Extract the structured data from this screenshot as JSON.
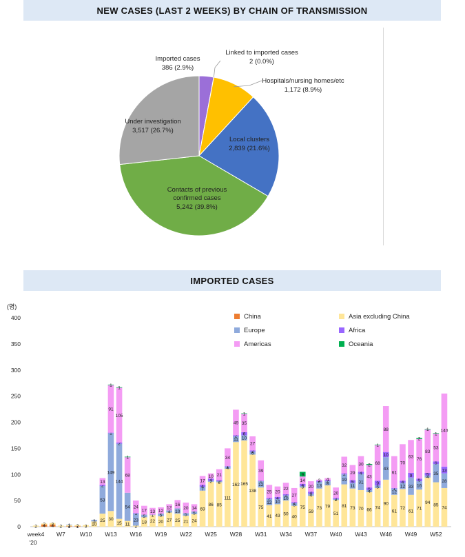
{
  "pie": {
    "title": "NEW CASES (LAST 2 WEEKS) BY CHAIN OF TRANSMISSION"
  },
  "bar": {
    "title": "IMPORTED CASES",
    "unit": "(명)"
  },
  "chart_data": [
    {
      "type": "pie",
      "title": "NEW CASES (LAST 2 WEEKS) BY CHAIN OF TRANSMISSION",
      "slices": [
        {
          "label": "Imported cases",
          "value": 386,
          "pct": "2.9%",
          "display": "386  (2.9%)",
          "color": "#9b6fd8"
        },
        {
          "label": "Linked to imported cases",
          "value": 2,
          "pct": "0.0%",
          "display": "2  (0.0%)",
          "color": "#e07a30"
        },
        {
          "label": "Hospitals/nursing homes/etc",
          "value": 1172,
          "pct": "8.9%",
          "display": "1,172  (8.9%)",
          "color": "#ffc000"
        },
        {
          "label": "Local clusters",
          "value": 2839,
          "pct": "21.6%",
          "display": "2,839  (21.6%)",
          "color": "#4472c4"
        },
        {
          "label": "Contacts of previous confirmed cases",
          "value": 5242,
          "pct": "39.8%",
          "display": "5,242  (39.8%)",
          "color": "#70ad47"
        },
        {
          "label": "Under investigation",
          "value": 3517,
          "pct": "26.7%",
          "display": "3,517  (26.7%)",
          "color": "#a5a5a5"
        }
      ]
    },
    {
      "type": "bar",
      "stacked": true,
      "title": "IMPORTED CASES",
      "ylabel": "(명)",
      "ylim": [
        0,
        400
      ],
      "yticks": [
        0,
        50,
        100,
        150,
        200,
        250,
        300,
        350,
        400
      ],
      "x_tick_labels": [
        {
          "index": 0,
          "label": "week4"
        },
        {
          "index": 3,
          "label": "W7"
        },
        {
          "index": 6,
          "label": "W10"
        },
        {
          "index": 9,
          "label": "W13"
        },
        {
          "index": 12,
          "label": "W16"
        },
        {
          "index": 15,
          "label": "W19"
        },
        {
          "index": 18,
          "label": "W22"
        },
        {
          "index": 21,
          "label": "W25"
        },
        {
          "index": 24,
          "label": "W28"
        },
        {
          "index": 27,
          "label": "W31"
        },
        {
          "index": 30,
          "label": "W34"
        },
        {
          "index": 33,
          "label": "W37"
        },
        {
          "index": 36,
          "label": "W40"
        },
        {
          "index": 39,
          "label": "W43"
        },
        {
          "index": 42,
          "label": "W46"
        },
        {
          "index": 45,
          "label": "W49"
        },
        {
          "index": 48,
          "label": "W52"
        }
      ],
      "year_label": "'20",
      "categories": [
        "W4",
        "W5",
        "W6",
        "W7",
        "W8",
        "W9",
        "W10",
        "W11",
        "W12",
        "W13",
        "W14",
        "W15",
        "W16",
        "W17",
        "W18",
        "W19",
        "W20",
        "W21",
        "W22",
        "W23",
        "W24",
        "W25",
        "W26",
        "W27",
        "W28",
        "W29",
        "W30",
        "W31",
        "W32",
        "W33",
        "W34",
        "W35",
        "W36",
        "W37",
        "W38",
        "W39",
        "W40",
        "W41",
        "W42",
        "W43",
        "W44",
        "W45",
        "W46",
        "W47",
        "W48",
        "W49",
        "W50",
        "W51",
        "W52",
        "W53"
      ],
      "legend_order": [
        "China",
        "Asia excluding China",
        "Europe",
        "Africa",
        "Americas",
        "Oceania"
      ],
      "series": [
        {
          "name": "China",
          "color": "#ed7d31",
          "values": [
            0,
            4,
            4,
            0,
            1,
            1,
            0,
            0,
            0,
            0,
            0,
            0,
            0,
            0,
            0,
            0,
            0,
            0,
            0,
            0,
            0,
            0,
            0,
            0,
            0,
            0,
            0,
            0,
            0,
            0,
            0,
            0,
            0,
            0,
            0,
            0,
            0,
            0,
            0,
            0,
            0,
            0,
            0,
            0,
            0,
            0,
            0,
            0,
            0,
            0
          ],
          "labels": [
            "",
            "4",
            "4",
            "",
            "1",
            "1",
            "",
            "",
            "",
            "",
            "",
            "",
            "",
            "",
            "",
            "",
            "",
            "",
            "",
            "",
            "",
            "",
            "",
            "",
            "",
            "",
            "",
            "",
            "",
            "",
            "",
            "",
            "",
            "",
            "",
            "",
            "",
            "",
            "",
            "",
            "",
            "",
            "",
            "",
            "",
            "",
            "",
            "",
            "",
            ""
          ]
        },
        {
          "name": "Asia excluding China",
          "color": "#ffe699",
          "values": [
            2,
            2,
            3,
            2,
            2,
            2,
            3,
            10,
            25,
            30,
            15,
            11,
            2,
            18,
            22,
            20,
            27,
            25,
            21,
            24,
            69,
            86,
            85,
            111,
            162,
            165,
            138,
            75,
            41,
            43,
            50,
            40,
            75,
            59,
            73,
            79,
            51,
            81,
            73,
            70,
            66,
            74,
            90,
            61,
            72,
            61,
            71,
            94,
            85,
            74
          ],
          "labels": [
            "2",
            "2",
            "3",
            "2",
            "2",
            "2",
            "3",
            "10",
            "25",
            "30",
            "15",
            "11",
            "2",
            "18",
            "22",
            "20",
            "27",
            "25",
            "21",
            "24",
            "69",
            "86",
            "85",
            "111",
            "162",
            "165",
            "138",
            "75",
            "41",
            "43",
            "50",
            "40",
            "75",
            "59",
            "73",
            "79",
            "51",
            "81",
            "73",
            "70",
            "66",
            "74",
            "90",
            "61",
            "72",
            "61",
            "71",
            "94",
            "85",
            "74"
          ]
        },
        {
          "name": "Europe",
          "color": "#8faadc",
          "values": [
            0,
            0,
            0,
            0,
            1,
            0,
            0,
            3,
            53,
            149,
            144,
            54,
            23,
            5,
            1,
            5,
            4,
            10,
            5,
            5,
            7,
            2,
            2,
            4,
            11,
            10,
            6,
            12,
            12,
            10,
            10,
            5,
            3,
            4,
            13,
            8,
            2,
            19,
            11,
            31,
            4,
            5,
            43,
            12,
            12,
            33,
            16,
            4,
            35,
            28
          ],
          "labels": [
            "",
            "",
            "",
            "",
            "1",
            "",
            "",
            "3",
            "53",
            "149",
            "144",
            "54",
            "23",
            "5",
            "1",
            "5",
            "4",
            "10",
            "5",
            "5",
            "7",
            "2",
            "2",
            "4",
            "11",
            "10",
            "6",
            "12",
            "12",
            "10",
            "10",
            "5",
            "3",
            "4",
            "13",
            "8",
            "2",
            "19",
            "11",
            "31",
            "4",
            "5",
            "43",
            "12",
            "12",
            "33",
            "16",
            "4",
            "35",
            "28"
          ]
        },
        {
          "name": "Africa",
          "color": "#9966ff",
          "values": [
            0,
            0,
            0,
            0,
            0,
            0,
            0,
            0,
            2,
            1,
            2,
            0,
            1,
            0,
            0,
            0,
            0,
            0,
            0,
            0,
            4,
            4,
            2,
            1,
            2,
            6,
            2,
            1,
            2,
            4,
            2,
            2,
            4,
            4,
            2,
            2,
            2,
            2,
            5,
            4,
            5,
            9,
            10,
            1,
            4,
            9,
            5,
            5,
            5,
            13
          ],
          "labels": [
            "",
            "",
            "",
            "",
            "",
            "",
            "",
            "",
            "2",
            "1",
            "2",
            "",
            "1",
            "",
            "",
            "",
            "",
            "",
            "",
            "",
            "4",
            "4",
            "2",
            "1",
            "2",
            "6",
            "2",
            "1",
            "2",
            "4",
            "2",
            "2",
            "4",
            "4",
            "2",
            "2",
            "2",
            "2",
            "5",
            "4",
            "5",
            "9",
            "10",
            "1",
            "4",
            "9",
            "5",
            "5",
            "5",
            "13"
          ]
        },
        {
          "name": "Americas",
          "color": "#f49cf4",
          "values": [
            0,
            0,
            0,
            0,
            0,
            0,
            0,
            0,
            13,
            91,
            105,
            68,
            24,
            17,
            13,
            12,
            12,
            16,
            20,
            14,
            17,
            10,
            21,
            34,
            49,
            35,
            27,
            39,
            25,
            20,
            22,
            27,
            14,
            20,
            2,
            4,
            20,
            32,
            29,
            30,
            43,
            68,
            88,
            61,
            70,
            63,
            76,
            83,
            53,
            140
          ],
          "labels": [
            "",
            "",
            "",
            "",
            "",
            "",
            "",
            "",
            "13",
            "91",
            "105",
            "68",
            "24",
            "17",
            "13",
            "12",
            "12",
            "16",
            "20",
            "14",
            "17",
            "10",
            "21",
            "34",
            "49",
            "35",
            "27",
            "39",
            "25",
            "20",
            "22",
            "27",
            "14",
            "20",
            "2",
            "4",
            "20",
            "32",
            "29",
            "30",
            "43",
            "68",
            "88",
            "61",
            "70",
            "63",
            "76",
            "83",
            "53",
            "140"
          ]
        },
        {
          "name": "Oceania",
          "color": "#00b050",
          "values": [
            0,
            0,
            0,
            0,
            0,
            0,
            0,
            0,
            0,
            1,
            1,
            1,
            0,
            0,
            0,
            0,
            0,
            0,
            0,
            0,
            0,
            0,
            0,
            0,
            0,
            1,
            0,
            0,
            0,
            0,
            0,
            0,
            9,
            0,
            0,
            0,
            0,
            0,
            0,
            0,
            2,
            1,
            0,
            0,
            0,
            0,
            2,
            1,
            1,
            0
          ],
          "labels": [
            "",
            "",
            "",
            "",
            "",
            "",
            "",
            "",
            "",
            "1",
            "1",
            "1",
            "",
            "",
            "",
            "",
            "",
            "",
            "",
            "",
            "",
            "",
            "",
            "",
            "",
            "1",
            "",
            "",
            "",
            "",
            "",
            "",
            "9",
            "",
            "",
            "",
            "",
            "",
            "",
            "",
            "2",
            "1",
            "",
            "",
            "",
            "",
            "2",
            "1",
            "1",
            ""
          ]
        }
      ]
    }
  ]
}
